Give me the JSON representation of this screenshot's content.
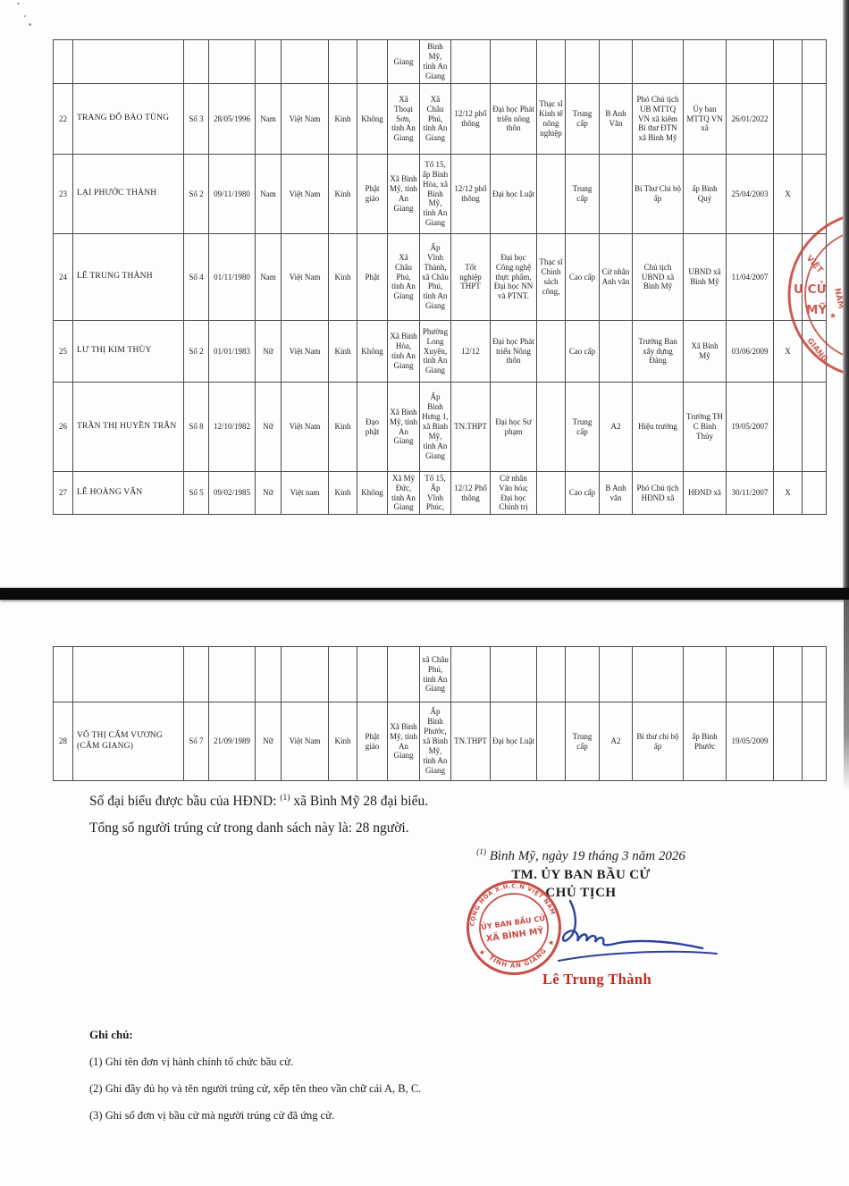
{
  "tables": {
    "p1": {
      "columns": [
        "col-stt",
        "col-ho-ten",
        "col-don-vi-bau-cu",
        "col-ngay-sinh",
        "col-gioi-tinh",
        "col-quoc-tich",
        "col-dan-toc",
        "col-ton-giao",
        "col-que-quan",
        "col-noi-o",
        "col-giao-duc-pho-thong",
        "col-chuyen-mon",
        "col-hoc-vi",
        "col-ly-luan-chinh-tri",
        "col-ngoai-ngu",
        "col-chuc-vu",
        "col-noi-cong-tac",
        "col-ngay-vao-dang",
        "col-tai-cu",
        "col-ghi-chu"
      ],
      "rows": [
        [
          "",
          "",
          "",
          "",
          "",
          "",
          "",
          "",
          "Giang",
          "Bình Mỹ, tỉnh An Giang",
          "",
          "",
          "",
          "",
          "",
          "",
          "",
          "",
          "",
          ""
        ],
        [
          "22",
          "TRANG ĐỖ BẢO TÙNG",
          "Số 3",
          "28/05/1996",
          "Nam",
          "Việt Nam",
          "Kinh",
          "Không",
          "Xã Thoại Sơn, tỉnh An Giang",
          "Xã Châu Phú, tỉnh An Giang",
          "12/12 phổ thông",
          "Đại học Phát triển nông thôn",
          "Thạc sĩ Kinh tế nông nghiệp",
          "Trung cấp",
          "B Anh Văn",
          "Phó Chủ tịch UB MTTQ VN xã kiêm Bí thư ĐTN xã Bình Mỹ",
          "Ủy ban MTTQ VN xã",
          "26/01/2022",
          "",
          ""
        ],
        [
          "23",
          "LẠI PHƯỚC THÀNH",
          "Số 2",
          "09/11/1980",
          "Nam",
          "Việt Nam",
          "Kinh",
          "Phật giáo",
          "Xã Bình Mỹ, tỉnh An Giang",
          "Tổ 15, ấp Bình Hòa, xã Bình Mỹ, tỉnh An Giang",
          "12/12 phổ thông",
          "Đại học Luật",
          "",
          "Trung cấp",
          "",
          "Bí Thư Chi bộ ấp",
          "ấp Bình Quý",
          "25/04/2003",
          "X",
          ""
        ],
        [
          "24",
          "LÊ TRUNG THÀNH",
          "Số 4",
          "01/11/1980",
          "Nam",
          "Việt Nam",
          "Kinh",
          "Phật",
          "Xã Châu Phú, tỉnh An Giang",
          "Ấp Vĩnh Thành, xã Châu Phú, tỉnh An Giang",
          "Tốt nghiệp THPT",
          "Đại học Công nghệ thực phẩm, Đại học NN và PTNT.",
          "Thạc sĩ Chính sách công,",
          "Cao cấp",
          "Cử nhân Anh văn",
          "Chủ tịch UBND xã Bình Mỹ",
          "UBND xã Bình Mỹ",
          "11/04/2007",
          "",
          ""
        ],
        [
          "25",
          "LƯ THỊ KIM THÙY",
          "Số 2",
          "01/01/1983",
          "Nữ",
          "Việt Nam",
          "Kinh",
          "Không",
          "Xã Bình Hòa, tỉnh An Giang",
          "Phường Long Xuyên, tỉnh An Giang",
          "12/12",
          "Đại học Phát triển Nông thôn",
          "",
          "Cao cấp",
          "",
          "Trưởng Ban xây dựng Đảng",
          "Xã Bình Mỹ",
          "03/06/2009",
          "X",
          ""
        ],
        [
          "26",
          "TRẦN THỊ HUYỀN TRÂN",
          "Số 8",
          "12/10/1982",
          "Nữ",
          "Việt Nam",
          "Kinh",
          "Đạo phật",
          "Xã Bình Mỹ, tỉnh An Giang",
          "Ấp Bình Hưng 1, xã Bình Mỹ, tỉnh An Giang",
          "TN.THPT",
          "Đại học Sư phạm",
          "",
          "Trung cấp",
          "A2",
          "Hiệu trưởng",
          "Trường TH C Bình Thủy",
          "19/05/2007",
          "",
          ""
        ],
        [
          "27",
          "LÊ HOÀNG VÂN",
          "Số 5",
          "09/02/1985",
          "Nữ",
          "Việt nam",
          "Kinh",
          "Không",
          "Xã Mỹ Đức, tỉnh An Giang",
          "Tổ 15, Ấp Vĩnh Phúc,",
          "12/12 Phổ thông",
          "Cử nhân Văn hóa; Đại học Chính trị",
          "",
          "Cao cấp",
          "B Anh văn",
          "Phó Chủ tịch HĐND xã",
          "HĐND xã",
          "30/11/2007",
          "X",
          ""
        ]
      ]
    },
    "p2": {
      "columns": [
        "col-stt",
        "col-ho-ten",
        "col-don-vi-bau-cu",
        "col-ngay-sinh",
        "col-gioi-tinh",
        "col-quoc-tich",
        "col-dan-toc",
        "col-ton-giao",
        "col-que-quan",
        "col-noi-o",
        "col-giao-duc-pho-thong",
        "col-chuyen-mon",
        "col-hoc-vi",
        "col-ly-luan-chinh-tri",
        "col-ngoai-ngu",
        "col-chuc-vu",
        "col-noi-cong-tac",
        "col-ngay-vao-dang",
        "col-tai-cu",
        "col-ghi-chu"
      ],
      "rows": [
        [
          "",
          "",
          "",
          "",
          "",
          "",
          "",
          "",
          "",
          "xã Châu Phú, tỉnh An Giang",
          "",
          "",
          "",
          "",
          "",
          "",
          "",
          "",
          "",
          ""
        ],
        [
          "28",
          "VÕ THỊ CẨM VƯƠNG (CẨM GIANG)",
          "Số 7",
          "21/09/1989",
          "Nữ",
          "Việt Nam",
          "Kinh",
          "Phật giáo",
          "Xã Bình Mỹ, tỉnh An Giang",
          "Ấp Bình Phước, xã Bình Mỹ, tỉnh An Giang",
          "TN.THPT",
          "Đại học Luật",
          "",
          "Trung cấp",
          "A2",
          "Bí thư chi bộ ấp",
          "ấp Bình Phước",
          "19/05/2009",
          "",
          ""
        ]
      ]
    }
  },
  "summary": {
    "line1_pre": "Số đại biểu được bầu của HĐND: ",
    "line1_sup": "(1)",
    "line1_post": " xã Bình Mỹ 28 đại biểu.",
    "line2": "Tổng số người trúng cử trong danh sách này là: 28 người."
  },
  "signature": {
    "date_sup": "(1)",
    "date_text": " Bình Mỹ, ngày 19  tháng 3 năm 2026",
    "org_line": "TM. ỦY BAN BẦU CỬ",
    "title_line": "CHỦ TỊCH",
    "signer": "Lê Trung Thành"
  },
  "stamp": {
    "arc_top": "CỘNG HÒA X.H.C.N VIỆT NAM",
    "arc_bottom": "TỈNH AN GIANG",
    "center_line1": "ỦY BAN BẦU CỬ",
    "center_line2": "XÃ BÌNH MỸ",
    "star": "★",
    "color": "#c2332a"
  },
  "edge_stamp": {
    "frag_viet": "VIỆT",
    "frag_nam": "NAM",
    "frag_cu": "U CỬ",
    "frag_my": "MỸ",
    "frag_giang": "GIANG",
    "star": "★"
  },
  "notes": {
    "heading": "Ghi chú:",
    "items": [
      "(1) Ghi tên đơn vị hành chính tổ chức bầu cử.",
      "(2) Ghi đầy đủ họ và tên người trúng cử, xếp tên theo vần chữ cái A, B, C.",
      "(3) Ghi số đơn vị bầu cử mà người trúng cử đã ứng cử."
    ]
  },
  "colors": {
    "stamp_red": "#c2332a",
    "signer_red": "#c4291f",
    "signature_blue": "#2b3f9e",
    "ink": "#1c1c1c"
  }
}
